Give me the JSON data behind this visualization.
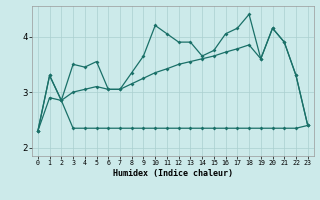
{
  "xlabel": "Humidex (Indice chaleur)",
  "bg_color": "#cceaea",
  "line_color": "#1a7068",
  "grid_color": "#aacfcf",
  "xlim": [
    -0.5,
    23.5
  ],
  "ylim": [
    1.85,
    4.55
  ],
  "yticks": [
    2,
    3,
    4
  ],
  "xticks": [
    0,
    1,
    2,
    3,
    4,
    5,
    6,
    7,
    8,
    9,
    10,
    11,
    12,
    13,
    14,
    15,
    16,
    17,
    18,
    19,
    20,
    21,
    22,
    23
  ],
  "line1_y": [
    2.3,
    2.9,
    2.85,
    2.35,
    2.35,
    2.35,
    2.35,
    2.35,
    2.35,
    2.35,
    2.35,
    2.35,
    2.35,
    2.35,
    2.35,
    2.35,
    2.35,
    2.35,
    2.35,
    2.35,
    2.35,
    2.35,
    2.35,
    2.4
  ],
  "line2_y": [
    2.3,
    3.3,
    2.85,
    3.5,
    3.45,
    3.55,
    3.05,
    3.05,
    3.35,
    3.65,
    4.2,
    4.05,
    3.9,
    3.9,
    3.65,
    3.75,
    4.05,
    4.15,
    4.4,
    3.6,
    4.15,
    3.9,
    3.3,
    2.4
  ],
  "line3_y": [
    2.3,
    3.3,
    2.85,
    3.0,
    3.05,
    3.1,
    3.05,
    3.05,
    3.15,
    3.25,
    3.35,
    3.42,
    3.5,
    3.55,
    3.6,
    3.65,
    3.72,
    3.78,
    3.85,
    3.6,
    4.15,
    3.9,
    3.3,
    2.4
  ]
}
